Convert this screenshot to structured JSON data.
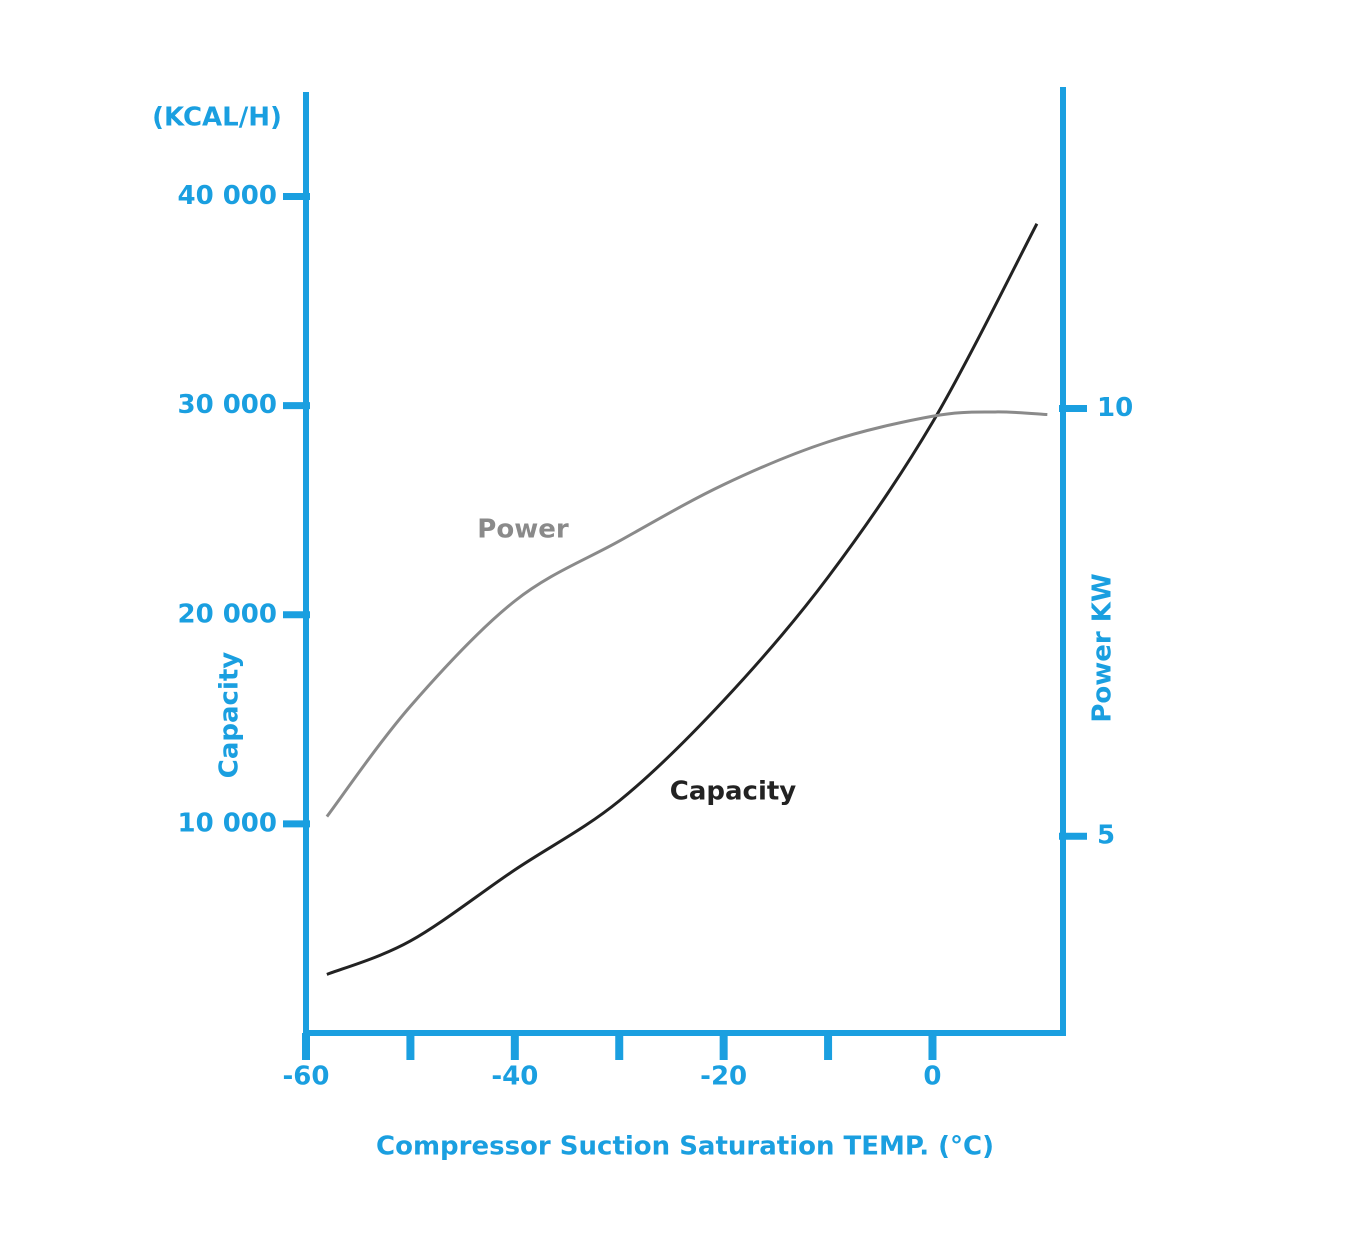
{
  "chart_data": {
    "type": "line",
    "y_unit_label": "(KCAL/H)",
    "ylabel": "Capacity",
    "y2label": "Power KW",
    "xlabel": "Compressor Suction Saturation TEMP. (°C)",
    "xlim": [
      -60,
      12.5
    ],
    "xticks": [
      -60,
      -40,
      -20,
      0
    ],
    "minor_xticks": [
      -50,
      -30,
      -10
    ],
    "ylim": [
      0,
      45000
    ],
    "yticks": [
      {
        "value": 10000,
        "label": "10 000"
      },
      {
        "value": 20000,
        "label": "20 000"
      },
      {
        "value": 30000,
        "label": "30 000"
      },
      {
        "value": 40000,
        "label": "40 000"
      }
    ],
    "y2lim": [
      2.7,
      13.7
    ],
    "y2ticks": [
      5,
      10
    ],
    "axis_color": "#1a9fe0",
    "series": [
      {
        "name": "Capacity",
        "color": "#222222",
        "x": [
          -58,
          -50,
          -40,
          -30,
          -20,
          -10,
          0,
          10
        ],
        "values": [
          2800,
          4400,
          7800,
          11100,
          15900,
          21800,
          29200,
          38700
        ]
      },
      {
        "name": "Power",
        "color": "#8a8a8a",
        "axis": "y2",
        "x": [
          -58,
          -50,
          -40,
          -30,
          -20,
          -10,
          0,
          6,
          11
        ],
        "values": [
          5.23,
          6.52,
          7.75,
          8.45,
          9.11,
          9.61,
          9.91,
          9.96,
          9.93
        ]
      }
    ]
  }
}
